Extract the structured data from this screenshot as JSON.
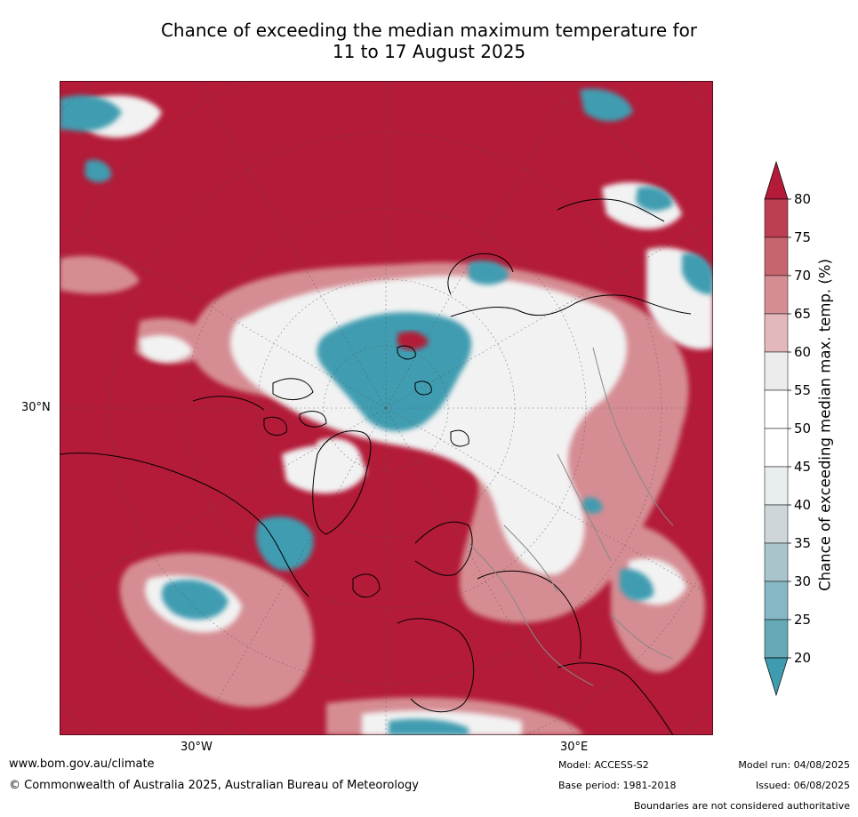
{
  "title_line1": "Chance of exceeding the median maximum temperature for",
  "title_line2": "11 to 17 August 2025",
  "labels": {
    "lat_30n": "30°N",
    "lon_30w": "30°W",
    "lon_30e": "30°E"
  },
  "colorbar": {
    "title": "Chance of exceeding median max. temp. (%)",
    "ticks": [
      "80",
      "75",
      "70",
      "65",
      "60",
      "55",
      "50",
      "45",
      "40",
      "35",
      "30",
      "25",
      "20"
    ],
    "colors": [
      "#b31b38",
      "#bb3e51",
      "#c7656f",
      "#d58d93",
      "#e3b8bb",
      "#ececec",
      "#ffffff",
      "#ffffff",
      "#e8edf0",
      "#cfd6d9",
      "#a9c5cb",
      "#85b8c4",
      "#65a8b6",
      "#3f9cb0"
    ]
  },
  "footer": {
    "website": "www.bom.gov.au/climate",
    "copyright": "© Commonwealth of Australia 2025, Australian Bureau of Meteorology",
    "model": "Model: ACCESS-S2",
    "base_period": "Base period: 1981-2018",
    "model_run": "Model run: 04/08/2025",
    "issued": "Issued: 06/08/2025",
    "disclaimer": "Boundaries are not considered authoritative"
  }
}
